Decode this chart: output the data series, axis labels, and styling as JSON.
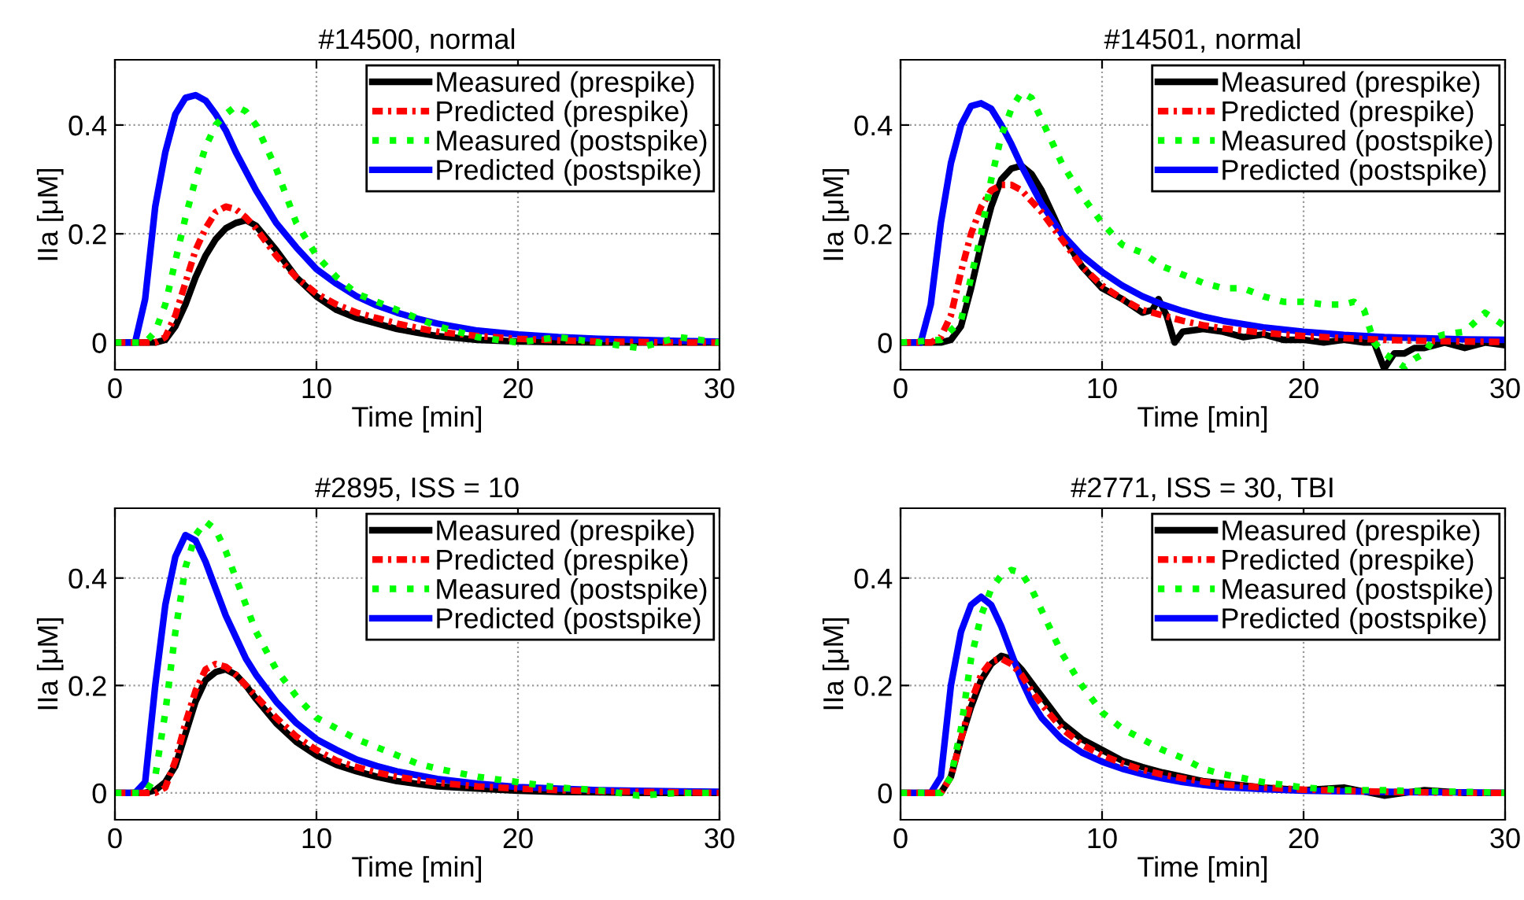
{
  "chart_data": [
    {
      "type": "line",
      "title": "#14500, normal",
      "xlabel": "Time [min]",
      "ylabel": "IIa [μM]",
      "xlim": [
        0,
        30
      ],
      "ylim": [
        -0.05,
        0.52
      ],
      "xticks": [
        0,
        10,
        20,
        30
      ],
      "yticks": [
        0,
        0.2,
        0.4
      ],
      "grid": true,
      "legend": "top right",
      "x": [
        0,
        1,
        1.5,
        2,
        2.5,
        3,
        3.5,
        4,
        4.5,
        5,
        5.5,
        6,
        6.5,
        7,
        8,
        9,
        10,
        11,
        12,
        13,
        14,
        15,
        16,
        18,
        20,
        22,
        24,
        26,
        28,
        30
      ],
      "series": [
        {
          "name": "Measured (prespike)",
          "color": "#000000",
          "line_style": "solid",
          "values": [
            0,
            0,
            0,
            0,
            0.005,
            0.03,
            0.07,
            0.12,
            0.16,
            0.19,
            0.21,
            0.22,
            0.225,
            0.215,
            0.17,
            0.12,
            0.085,
            0.06,
            0.045,
            0.035,
            0.025,
            0.018,
            0.012,
            0.005,
            0.002,
            0.001,
            0,
            0,
            0,
            0
          ]
        },
        {
          "name": "Predicted (prespike)",
          "color": "#ff0000",
          "line_style": "dashdot",
          "values": [
            0,
            0,
            0,
            0,
            0.01,
            0.05,
            0.11,
            0.17,
            0.21,
            0.24,
            0.25,
            0.245,
            0.23,
            0.21,
            0.16,
            0.12,
            0.09,
            0.07,
            0.055,
            0.045,
            0.035,
            0.027,
            0.02,
            0.012,
            0.007,
            0.004,
            0.002,
            0.001,
            0,
            0
          ]
        },
        {
          "name": "Measured (postspike)",
          "color": "#00ff00",
          "line_style": "dotted",
          "values": [
            0,
            0,
            0,
            0.02,
            0.07,
            0.15,
            0.23,
            0.3,
            0.36,
            0.4,
            0.42,
            0.435,
            0.425,
            0.4,
            0.32,
            0.22,
            0.16,
            0.12,
            0.09,
            0.075,
            0.06,
            0.045,
            0.03,
            0.01,
            0,
            0.01,
            0,
            -0.01,
            0.01,
            0
          ]
        },
        {
          "name": "Predicted (postspike)",
          "color": "#0000ff",
          "line_style": "solid",
          "values": [
            0,
            0,
            0.08,
            0.25,
            0.35,
            0.42,
            0.45,
            0.455,
            0.445,
            0.42,
            0.39,
            0.35,
            0.315,
            0.28,
            0.22,
            0.175,
            0.135,
            0.108,
            0.085,
            0.068,
            0.055,
            0.044,
            0.035,
            0.022,
            0.015,
            0.01,
            0.007,
            0.005,
            0.003,
            0.002
          ]
        }
      ]
    },
    {
      "type": "line",
      "title": "#14501, normal",
      "xlabel": "Time [min]",
      "ylabel": "IIa [μM]",
      "xlim": [
        0,
        30
      ],
      "ylim": [
        -0.05,
        0.52
      ],
      "xticks": [
        0,
        10,
        20,
        30
      ],
      "yticks": [
        0,
        0.2,
        0.4
      ],
      "grid": true,
      "legend": "top right",
      "x": [
        0,
        1,
        1.5,
        2,
        2.5,
        3,
        3.5,
        4,
        4.5,
        5,
        5.5,
        6,
        6.5,
        7,
        8,
        9,
        10,
        11,
        12,
        13,
        14,
        15,
        16,
        18,
        20,
        22,
        24,
        26,
        28,
        30
      ],
      "series": [
        {
          "name": "Measured (prespike)",
          "color": "#000000",
          "line_style": "solid",
          "x": [
            0,
            2,
            2.5,
            3,
            3.5,
            4,
            4.5,
            5,
            5.5,
            6,
            6.5,
            7,
            8,
            9,
            10,
            11,
            12,
            12.5,
            12.8,
            13.2,
            13.6,
            14,
            15,
            16,
            17,
            18,
            19,
            20,
            21,
            22,
            23,
            23.5,
            24,
            24.5,
            25,
            25.5,
            26,
            27,
            28,
            29,
            30
          ],
          "values": [
            0,
            0,
            0.005,
            0.03,
            0.1,
            0.18,
            0.25,
            0.3,
            0.32,
            0.325,
            0.31,
            0.28,
            0.2,
            0.14,
            0.1,
            0.08,
            0.055,
            0.06,
            0.08,
            0.05,
            0,
            0.02,
            0.025,
            0.02,
            0.01,
            0.015,
            0.005,
            0.005,
            0,
            0.005,
            0,
            0,
            -0.048,
            -0.02,
            -0.02,
            -0.01,
            -0.01,
            0,
            -0.01,
            0,
            -0.005
          ]
        },
        {
          "name": "Predicted (prespike)",
          "color": "#ff0000",
          "line_style": "dashdot",
          "values": [
            0,
            0,
            0,
            0.01,
            0.05,
            0.13,
            0.2,
            0.25,
            0.28,
            0.29,
            0.29,
            0.28,
            0.26,
            0.24,
            0.19,
            0.14,
            0.105,
            0.08,
            0.06,
            0.05,
            0.04,
            0.032,
            0.026,
            0.018,
            0.012,
            0.008,
            0.005,
            0.003,
            0.002,
            0.001
          ]
        },
        {
          "name": "Measured (postspike)",
          "color": "#00ff00",
          "line_style": "dotted",
          "x": [
            0,
            2,
            3,
            3.5,
            4,
            4.5,
            5,
            5.5,
            6,
            6.5,
            7,
            8,
            9,
            10,
            11,
            12,
            13,
            14,
            15,
            16,
            17,
            18,
            19,
            20,
            21,
            22,
            22.5,
            23,
            23.5,
            24,
            25,
            25.5,
            26,
            26.5,
            27,
            28,
            29,
            30
          ],
          "values": [
            0,
            0.005,
            0.04,
            0.12,
            0.2,
            0.3,
            0.38,
            0.43,
            0.46,
            0.45,
            0.41,
            0.33,
            0.27,
            0.22,
            0.18,
            0.165,
            0.14,
            0.125,
            0.11,
            0.1,
            0.1,
            0.085,
            0.075,
            0.075,
            0.07,
            0.07,
            0.075,
            0.06,
            0,
            -0.02,
            -0.045,
            -0.03,
            -0.02,
            0.01,
            0.015,
            0.02,
            0.055,
            0.03
          ]
        },
        {
          "name": "Predicted (postspike)",
          "color": "#0000ff",
          "line_style": "solid",
          "values": [
            0,
            0,
            0.07,
            0.22,
            0.33,
            0.4,
            0.435,
            0.44,
            0.43,
            0.4,
            0.365,
            0.325,
            0.29,
            0.255,
            0.2,
            0.16,
            0.13,
            0.105,
            0.085,
            0.07,
            0.058,
            0.048,
            0.04,
            0.028,
            0.02,
            0.014,
            0.01,
            0.008,
            0.006,
            0.005
          ]
        }
      ]
    },
    {
      "type": "line",
      "title": "#2895, ISS = 10",
      "xlabel": "Time [min]",
      "ylabel": "IIa [μM]",
      "xlim": [
        0,
        30
      ],
      "ylim": [
        -0.05,
        0.53
      ],
      "xticks": [
        0,
        10,
        20,
        30
      ],
      "yticks": [
        0,
        0.2,
        0.4
      ],
      "grid": true,
      "legend": "top right",
      "x": [
        0,
        1,
        1.5,
        2,
        2.5,
        3,
        3.5,
        4,
        4.5,
        5,
        5.5,
        6,
        6.5,
        7,
        8,
        9,
        10,
        11,
        12,
        13,
        14,
        15,
        16,
        18,
        20,
        22,
        24,
        26,
        28,
        30
      ],
      "series": [
        {
          "name": "Measured (prespike)",
          "color": "#000000",
          "line_style": "solid",
          "values": [
            0,
            0,
            0,
            0.005,
            0.02,
            0.05,
            0.11,
            0.17,
            0.21,
            0.225,
            0.23,
            0.22,
            0.2,
            0.175,
            0.13,
            0.095,
            0.07,
            0.052,
            0.04,
            0.03,
            0.022,
            0.017,
            0.012,
            0.008,
            0.004,
            0.002,
            0.001,
            0,
            0,
            0
          ]
        },
        {
          "name": "Predicted (prespike)",
          "color": "#ff0000",
          "line_style": "dashdot",
          "values": [
            0,
            0,
            0,
            0,
            0.01,
            0.06,
            0.13,
            0.19,
            0.23,
            0.24,
            0.235,
            0.22,
            0.2,
            0.18,
            0.14,
            0.105,
            0.08,
            0.06,
            0.048,
            0.038,
            0.03,
            0.024,
            0.019,
            0.012,
            0.008,
            0.005,
            0.003,
            0.002,
            0.001,
            0
          ]
        },
        {
          "name": "Measured (postspike)",
          "color": "#00ff00",
          "line_style": "dotted",
          "values": [
            0,
            0,
            0,
            0.03,
            0.15,
            0.3,
            0.42,
            0.48,
            0.505,
            0.49,
            0.45,
            0.4,
            0.35,
            0.3,
            0.23,
            0.18,
            0.14,
            0.12,
            0.1,
            0.085,
            0.07,
            0.055,
            0.045,
            0.03,
            0.02,
            0.01,
            0.005,
            -0.005,
            0,
            0
          ]
        },
        {
          "name": "Predicted (postspike)",
          "color": "#0000ff",
          "line_style": "solid",
          "values": [
            0,
            0,
            0.02,
            0.2,
            0.35,
            0.44,
            0.48,
            0.47,
            0.43,
            0.38,
            0.33,
            0.29,
            0.25,
            0.22,
            0.17,
            0.13,
            0.1,
            0.08,
            0.062,
            0.05,
            0.04,
            0.033,
            0.026,
            0.017,
            0.011,
            0.008,
            0.005,
            0.004,
            0.003,
            0.002
          ]
        }
      ]
    },
    {
      "type": "line",
      "title": "#2771, ISS = 30, TBI",
      "xlabel": "Time [min]",
      "ylabel": "IIa [μM]",
      "xlim": [
        0,
        30
      ],
      "ylim": [
        -0.05,
        0.53
      ],
      "xticks": [
        0,
        10,
        20,
        30
      ],
      "yticks": [
        0,
        0.2,
        0.4
      ],
      "grid": true,
      "legend": "top right",
      "x": [
        0,
        1,
        1.5,
        2,
        2.5,
        3,
        3.5,
        4,
        4.5,
        5,
        5.5,
        6,
        6.5,
        7,
        8,
        9,
        10,
        11,
        12,
        13,
        14,
        15,
        16,
        18,
        20,
        22,
        24,
        26,
        28,
        30
      ],
      "series": [
        {
          "name": "Measured (prespike)",
          "color": "#000000",
          "line_style": "solid",
          "values": [
            0,
            0,
            0,
            0,
            0.03,
            0.1,
            0.16,
            0.21,
            0.24,
            0.255,
            0.25,
            0.23,
            0.205,
            0.18,
            0.13,
            0.1,
            0.08,
            0.06,
            0.048,
            0.038,
            0.03,
            0.022,
            0.018,
            0.01,
            0.005,
            0.01,
            -0.005,
            0.005,
            0,
            0
          ]
        },
        {
          "name": "Predicted (prespike)",
          "color": "#ff0000",
          "line_style": "dashdot",
          "values": [
            0,
            0,
            0,
            0,
            0.03,
            0.1,
            0.17,
            0.22,
            0.245,
            0.25,
            0.24,
            0.22,
            0.19,
            0.165,
            0.12,
            0.09,
            0.07,
            0.055,
            0.043,
            0.034,
            0.027,
            0.021,
            0.016,
            0.01,
            0.006,
            0.004,
            0.002,
            0.001,
            0,
            0
          ]
        },
        {
          "name": "Measured (postspike)",
          "color": "#00ff00",
          "line_style": "dotted",
          "values": [
            0,
            0,
            0,
            0,
            0.03,
            0.12,
            0.25,
            0.33,
            0.38,
            0.405,
            0.415,
            0.41,
            0.38,
            0.34,
            0.26,
            0.2,
            0.15,
            0.12,
            0.1,
            0.08,
            0.065,
            0.045,
            0.035,
            0.02,
            0.01,
            0.005,
            0.005,
            0.003,
            0.002,
            0
          ]
        },
        {
          "name": "Predicted (postspike)",
          "color": "#0000ff",
          "line_style": "solid",
          "values": [
            0,
            0,
            0,
            0.03,
            0.2,
            0.3,
            0.35,
            0.365,
            0.35,
            0.31,
            0.26,
            0.21,
            0.17,
            0.14,
            0.1,
            0.075,
            0.058,
            0.045,
            0.035,
            0.027,
            0.02,
            0.015,
            0.011,
            0.007,
            0.004,
            0.003,
            0.002,
            0.001,
            0.001,
            0
          ]
        }
      ]
    }
  ]
}
